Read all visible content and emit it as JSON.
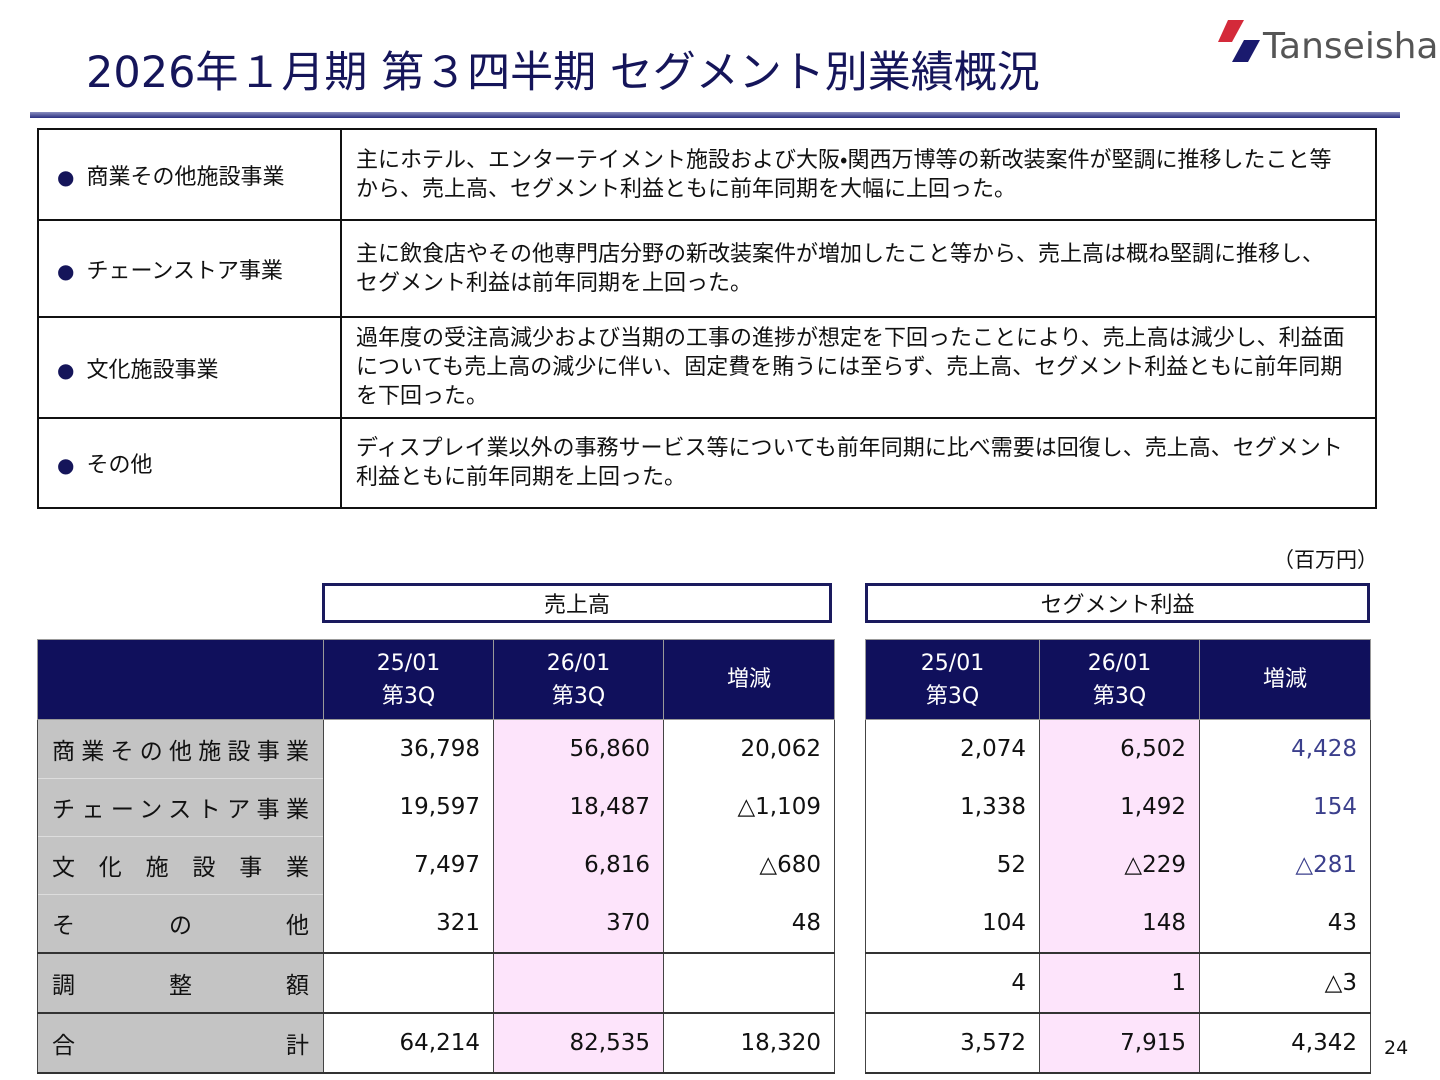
{
  "header": {
    "title": "2026年１月期 第３四半期 セグメント別業績概況",
    "logo": "Tanseisha"
  },
  "summary": {
    "rows": [
      {
        "segment": "商業その他施設事業",
        "text": "主にホテル、エンターテイメント施設および大阪・関西万博等の新改装案件が堅調に推移したこと等から、売上高、セグメント利益ともに前年同期を大幅に上回った。"
      },
      {
        "segment": "チェーンストア事業",
        "text": "主に飲食店やその他専門店分野の新改装案件が増加したこと等から、売上高は概ね堅調に推移し、セグメント利益は前年同期を上回った。"
      },
      {
        "segment": "文化施設事業",
        "text": "過年度の受注高減少および当期の工事の進捗が想定を下回ったことにより、売上高は減少し、利益面についても売上高の減少に伴い、固定費を賄うには至らず、売上高、セグメント利益ともに前年同期を下回った。"
      },
      {
        "segment": "その他",
        "text": "ディスプレイ業以外の事務サービス等についても前年同期に比べ需要は回復し、売上高、セグメント利益ともに前年同期を上回った。"
      }
    ]
  },
  "table": {
    "unit": "（百万円）",
    "groups": [
      "売上高",
      "セグメント利益"
    ],
    "columns": [
      "25/01\n第3Q",
      "26/01\n第3Q",
      "増減",
      "25/01\n第3Q",
      "26/01\n第3Q",
      "増減"
    ],
    "rows": [
      {
        "label": "商業その他施設事業",
        "values": [
          "36,798",
          "56,860",
          "20,062",
          "2,074",
          "6,502",
          "4,428"
        ]
      },
      {
        "label": "チェーンストア事業",
        "values": [
          "19,597",
          "18,487",
          "△1,109",
          "1,338",
          "1,492",
          "154"
        ]
      },
      {
        "label": "文化施設事業",
        "values": [
          "7,497",
          "6,816",
          "△680",
          "52",
          "△229",
          "△281"
        ]
      },
      {
        "label": "その他",
        "values": [
          "321",
          "370",
          "48",
          "104",
          "148",
          "43"
        ]
      },
      {
        "label": "調整額",
        "values": [
          null,
          null,
          null,
          "4",
          "1",
          "△3"
        ]
      },
      {
        "label": "合計",
        "values": [
          "64,214",
          "82,535",
          "18,320",
          "3,572",
          "7,915",
          "4,342"
        ]
      }
    ]
  },
  "page_number": "24"
}
